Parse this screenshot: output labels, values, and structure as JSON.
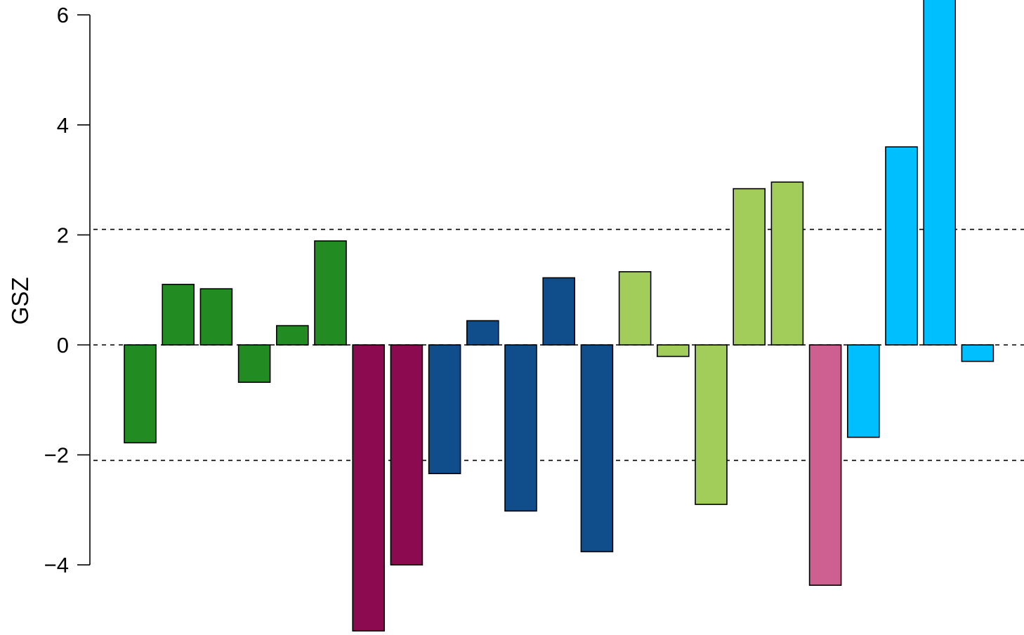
{
  "chart_data": {
    "type": "bar",
    "title": "",
    "xlabel": "",
    "ylabel": "GSZ",
    "ylim": [
      -5.5,
      6.3
    ],
    "yticks": [
      -4,
      -2,
      0,
      2,
      4,
      6
    ],
    "ytick_labels": [
      "−4",
      "−2",
      "0",
      "2",
      "4",
      "6"
    ],
    "reference_lines": [
      0,
      2.1,
      -2.1
    ],
    "grid": false,
    "legend": "none",
    "categories": [
      "",
      "",
      "",
      "",
      "",
      "",
      "",
      "",
      "",
      "",
      "",
      "",
      "",
      "",
      "",
      "",
      "",
      "",
      "",
      "",
      "",
      "",
      ""
    ],
    "values": [
      -1.78,
      1.1,
      1.02,
      -0.68,
      0.35,
      1.89,
      -5.2,
      -4.0,
      -2.34,
      0.44,
      -3.02,
      1.22,
      -3.76,
      1.33,
      -0.21,
      -2.9,
      2.84,
      2.96,
      -4.37,
      -1.68,
      3.6,
      6.6,
      -0.3
    ],
    "colors": [
      "#228B22",
      "#228B22",
      "#228B22",
      "#228B22",
      "#228B22",
      "#228B22",
      "#8B0A50",
      "#8B0A50",
      "#104E8B",
      "#104E8B",
      "#104E8B",
      "#104E8B",
      "#104E8B",
      "#A2CD5A",
      "#A2CD5A",
      "#A2CD5A",
      "#A2CD5A",
      "#A2CD5A",
      "#CD6090",
      "#00BFFF",
      "#00BFFF",
      "#00BFFF",
      "#00BFFF"
    ]
  }
}
